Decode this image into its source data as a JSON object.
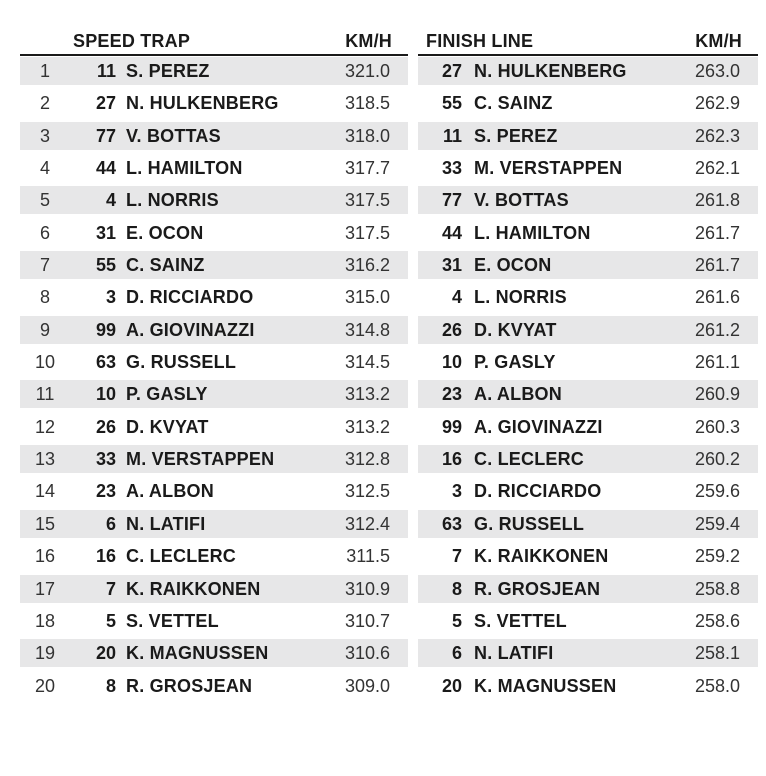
{
  "speed_trap": {
    "title": "SPEED TRAP",
    "unit": "KM/H",
    "rows": [
      {
        "pos": "1",
        "num": "11",
        "name": "S. PEREZ",
        "speed": "321.0"
      },
      {
        "pos": "2",
        "num": "27",
        "name": "N. HULKENBERG",
        "speed": "318.5"
      },
      {
        "pos": "3",
        "num": "77",
        "name": "V. BOTTAS",
        "speed": "318.0"
      },
      {
        "pos": "4",
        "num": "44",
        "name": "L. HAMILTON",
        "speed": "317.7"
      },
      {
        "pos": "5",
        "num": "4",
        "name": "L. NORRIS",
        "speed": "317.5"
      },
      {
        "pos": "6",
        "num": "31",
        "name": "E. OCON",
        "speed": "317.5"
      },
      {
        "pos": "7",
        "num": "55",
        "name": "C. SAINZ",
        "speed": "316.2"
      },
      {
        "pos": "8",
        "num": "3",
        "name": "D. RICCIARDO",
        "speed": "315.0"
      },
      {
        "pos": "9",
        "num": "99",
        "name": "A. GIOVINAZZI",
        "speed": "314.8"
      },
      {
        "pos": "10",
        "num": "63",
        "name": "G. RUSSELL",
        "speed": "314.5"
      },
      {
        "pos": "11",
        "num": "10",
        "name": "P. GASLY",
        "speed": "313.2"
      },
      {
        "pos": "12",
        "num": "26",
        "name": "D. KVYAT",
        "speed": "313.2"
      },
      {
        "pos": "13",
        "num": "33",
        "name": "M. VERSTAPPEN",
        "speed": "312.8"
      },
      {
        "pos": "14",
        "num": "23",
        "name": "A. ALBON",
        "speed": "312.5"
      },
      {
        "pos": "15",
        "num": "6",
        "name": "N. LATIFI",
        "speed": "312.4"
      },
      {
        "pos": "16",
        "num": "16",
        "name": "C. LECLERC",
        "speed": "311.5"
      },
      {
        "pos": "17",
        "num": "7",
        "name": "K. RAIKKONEN",
        "speed": "310.9"
      },
      {
        "pos": "18",
        "num": "5",
        "name": "S. VETTEL",
        "speed": "310.7"
      },
      {
        "pos": "19",
        "num": "20",
        "name": "K. MAGNUSSEN",
        "speed": "310.6"
      },
      {
        "pos": "20",
        "num": "8",
        "name": "R. GROSJEAN",
        "speed": "309.0"
      }
    ]
  },
  "finish_line": {
    "title": "FINISH LINE",
    "unit": "KM/H",
    "rows": [
      {
        "num": "27",
        "name": "N. HULKENBERG",
        "speed": "263.0"
      },
      {
        "num": "55",
        "name": "C. SAINZ",
        "speed": "262.9"
      },
      {
        "num": "11",
        "name": "S. PEREZ",
        "speed": "262.3"
      },
      {
        "num": "33",
        "name": "M. VERSTAPPEN",
        "speed": "262.1"
      },
      {
        "num": "77",
        "name": "V. BOTTAS",
        "speed": "261.8"
      },
      {
        "num": "44",
        "name": "L. HAMILTON",
        "speed": "261.7"
      },
      {
        "num": "31",
        "name": "E. OCON",
        "speed": "261.7"
      },
      {
        "num": "4",
        "name": "L. NORRIS",
        "speed": "261.6"
      },
      {
        "num": "26",
        "name": "D. KVYAT",
        "speed": "261.2"
      },
      {
        "num": "10",
        "name": "P. GASLY",
        "speed": "261.1"
      },
      {
        "num": "23",
        "name": "A. ALBON",
        "speed": "260.9"
      },
      {
        "num": "99",
        "name": "A. GIOVINAZZI",
        "speed": "260.3"
      },
      {
        "num": "16",
        "name": "C. LECLERC",
        "speed": "260.2"
      },
      {
        "num": "3",
        "name": "D. RICCIARDO",
        "speed": "259.6"
      },
      {
        "num": "63",
        "name": "G. RUSSELL",
        "speed": "259.4"
      },
      {
        "num": "7",
        "name": "K. RAIKKONEN",
        "speed": "259.2"
      },
      {
        "num": "8",
        "name": "R. GROSJEAN",
        "speed": "258.8"
      },
      {
        "num": "5",
        "name": "S. VETTEL",
        "speed": "258.6"
      },
      {
        "num": "6",
        "name": "N. LATIFI",
        "speed": "258.1"
      },
      {
        "num": "20",
        "name": "K. MAGNUSSEN",
        "speed": "258.0"
      }
    ]
  },
  "colors": {
    "shade": "#e7e7e8",
    "rule": "#1a1a1a",
    "text": "#1a1a1a"
  }
}
